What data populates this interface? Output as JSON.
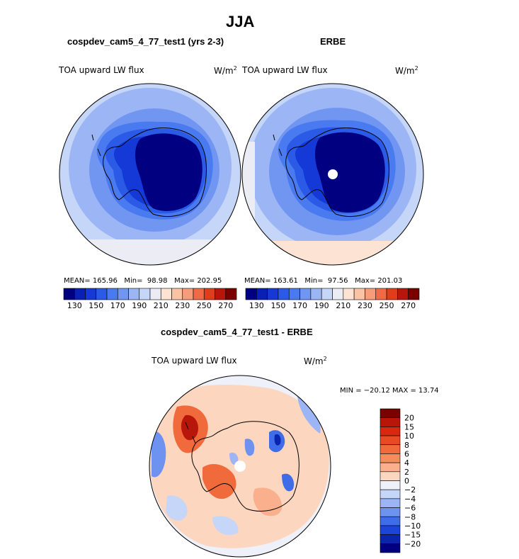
{
  "title": "JJA",
  "panels": [
    {
      "id": "model",
      "heading": "cospdev_cam5_4_77_test1 (yrs 2-3)",
      "variable": "TOA upward LW flux",
      "units": "W/m",
      "units_exp": "2",
      "stats": {
        "mean_label": "MEAN=",
        "mean": "165.96",
        "min_label": "Min=",
        "min": "98.98",
        "max_label": "Max=",
        "max": "202.95"
      }
    },
    {
      "id": "obs",
      "heading": "ERBE",
      "variable": "TOA upward LW flux",
      "units": "W/m",
      "units_exp": "2",
      "stats": {
        "mean_label": "MEAN=",
        "mean": "163.61",
        "min_label": "Min=",
        "min": "97.56",
        "max_label": "Max=",
        "max": "201.03"
      }
    }
  ],
  "difference": {
    "heading": "cospdev_cam5_4_77_test1 - ERBE",
    "variable": "TOA upward LW flux",
    "units": "W/m",
    "units_exp": "2",
    "minmax": "MIN = −20.12 MAX =  13.74"
  },
  "chart_data": [
    {
      "type": "heatmap",
      "projection": "south-polar-stereographic",
      "title": "cospdev_cam5_4_77_test1 (yrs 2-3)",
      "variable": "TOA upward LW flux",
      "units": "W/m2",
      "mean": 165.96,
      "min": 98.98,
      "max": 202.95,
      "colorbar": {
        "orientation": "horizontal",
        "levels": [
          130,
          140,
          150,
          160,
          170,
          180,
          190,
          200,
          210,
          220,
          230,
          240,
          250,
          260,
          270
        ],
        "tick_labels": [
          "130",
          "150",
          "170",
          "190",
          "210",
          "230",
          "250",
          "270"
        ],
        "colors": [
          "#000080",
          "#0a1fb4",
          "#1439d6",
          "#2a5ae6",
          "#4a7af0",
          "#7196f2",
          "#9cb6f5",
          "#c6d6f8",
          "#ececf5",
          "#fde3d4",
          "#fbc3a6",
          "#f69c78",
          "#ef6b45",
          "#e03d1b",
          "#b8160a",
          "#7a0000"
        ]
      }
    },
    {
      "type": "heatmap",
      "projection": "south-polar-stereographic",
      "title": "ERBE",
      "variable": "TOA upward LW flux",
      "units": "W/m2",
      "mean": 163.61,
      "min": 97.56,
      "max": 201.03,
      "colorbar": {
        "orientation": "horizontal",
        "levels": [
          130,
          140,
          150,
          160,
          170,
          180,
          190,
          200,
          210,
          220,
          230,
          240,
          250,
          260,
          270
        ],
        "tick_labels": [
          "130",
          "150",
          "170",
          "190",
          "210",
          "230",
          "250",
          "270"
        ],
        "colors": [
          "#000080",
          "#0a1fb4",
          "#1439d6",
          "#2a5ae6",
          "#4a7af0",
          "#7196f2",
          "#9cb6f5",
          "#c6d6f8",
          "#ececf5",
          "#fde3d4",
          "#fbc3a6",
          "#f69c78",
          "#ef6b45",
          "#e03d1b",
          "#b8160a",
          "#7a0000"
        ]
      }
    },
    {
      "type": "heatmap",
      "projection": "south-polar-stereographic",
      "title": "cospdev_cam5_4_77_test1 - ERBE",
      "variable": "TOA upward LW flux",
      "units": "W/m2",
      "min": -20.12,
      "max": 13.74,
      "colorbar": {
        "orientation": "vertical",
        "levels": [
          20,
          15,
          10,
          8,
          6,
          4,
          2,
          0,
          -2,
          -4,
          -6,
          -8,
          -10,
          -15,
          -20
        ],
        "tick_labels": [
          "20",
          "15",
          "10",
          "8",
          "6",
          "4",
          "2",
          "0",
          "−2",
          "−4",
          "−6",
          "−8",
          "−10",
          "−15",
          "−20"
        ],
        "colors": [
          "#7a0000",
          "#b8160a",
          "#d6290f",
          "#e84a24",
          "#f06a3c",
          "#f68c5c",
          "#fab08c",
          "#fdd6c0",
          "#eef0fa",
          "#c6d6f8",
          "#9cb6f5",
          "#6d92f0",
          "#3f6de8",
          "#1a45d8",
          "#0a24b0",
          "#000080"
        ]
      }
    }
  ]
}
